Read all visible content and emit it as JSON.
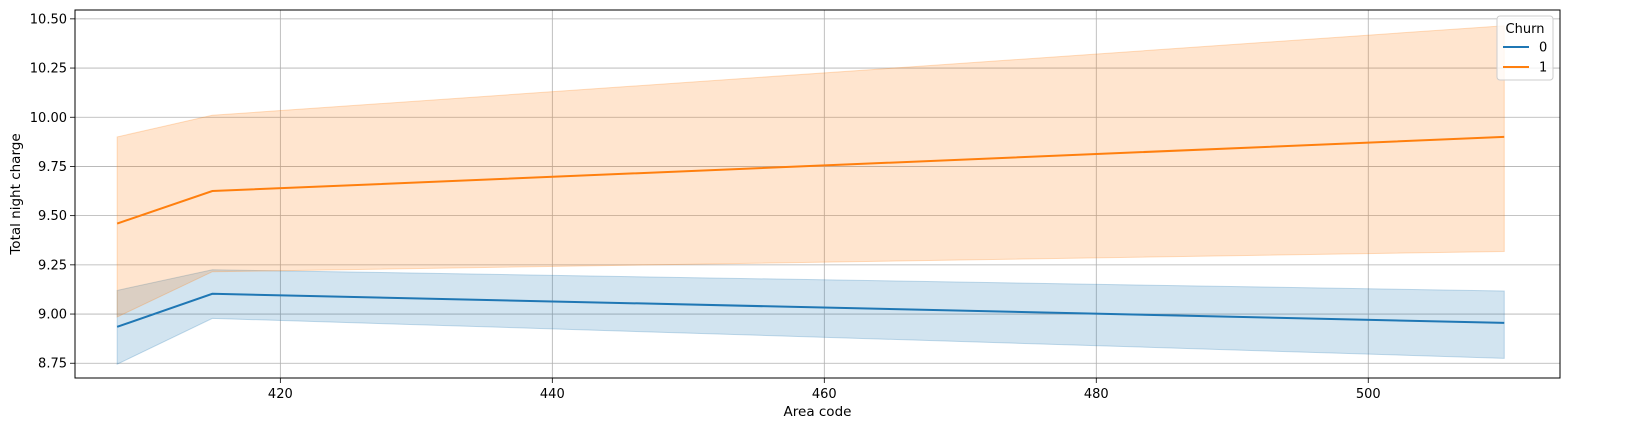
{
  "chart_data": {
    "type": "line",
    "title": "",
    "xlabel": "Area code",
    "ylabel": "Total night charge",
    "xlim": [
      404.9,
      514.1
    ],
    "ylim": [
      8.675,
      10.545
    ],
    "xticks": [
      420,
      440,
      460,
      480,
      500
    ],
    "xtick_labels": [
      "420",
      "440",
      "460",
      "480",
      "500"
    ],
    "yticks": [
      8.75,
      9.0,
      9.25,
      9.5,
      9.75,
      10.0,
      10.25,
      10.5
    ],
    "ytick_labels": [
      "8.75",
      "9.00",
      "9.25",
      "9.50",
      "9.75",
      "10.00",
      "10.25",
      "10.50"
    ],
    "grid": true,
    "legend": {
      "title": "Churn",
      "placement": "top-right"
    },
    "x": [
      408,
      415,
      510
    ],
    "series": [
      {
        "name": "0",
        "color": "#1f77b4",
        "values": [
          8.935,
          9.103,
          8.955
        ],
        "ci_low": [
          8.745,
          8.978,
          8.775
        ],
        "ci_high": [
          9.12,
          9.225,
          9.117
        ]
      },
      {
        "name": "1",
        "color": "#ff7f0e",
        "values": [
          9.46,
          9.625,
          9.9
        ],
        "ci_low": [
          8.985,
          9.215,
          9.318
        ],
        "ci_high": [
          9.9,
          10.01,
          10.465
        ]
      }
    ]
  }
}
